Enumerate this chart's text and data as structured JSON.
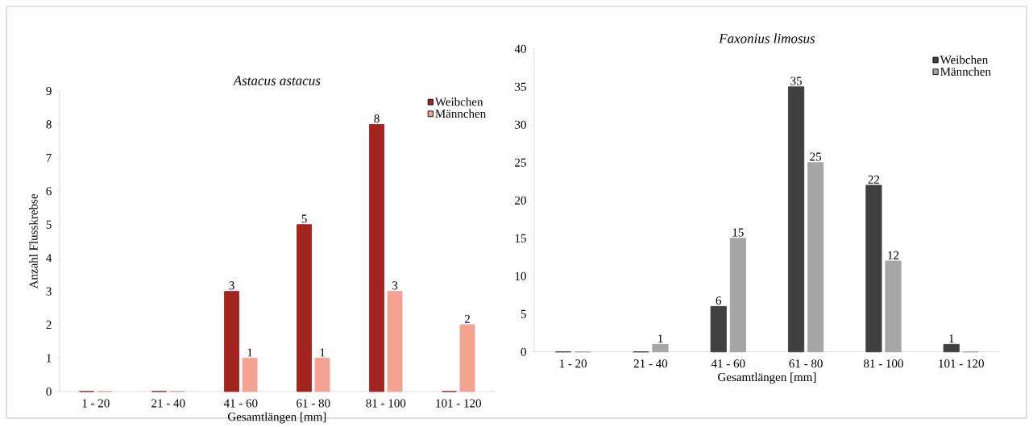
{
  "chart_data": [
    {
      "type": "bar",
      "title": "Astacus astacus",
      "xlabel": "Gesamtlängen [mm]",
      "ylabel": "Anzahl Flusskrebse",
      "categories": [
        "1 - 20",
        "21 - 40",
        "41 - 60",
        "61 - 80",
        "81 - 100",
        "101 - 120"
      ],
      "series": [
        {
          "name": "Weibchen",
          "color": "#a3231e",
          "values": [
            0,
            0,
            3,
            5,
            8,
            0
          ],
          "value_labels": [
            null,
            null,
            "3",
            "5",
            "8",
            null
          ]
        },
        {
          "name": "Männchen",
          "color": "#f4a393",
          "values": [
            0,
            0,
            1,
            1,
            3,
            2
          ],
          "value_labels": [
            null,
            null,
            "1",
            "1",
            "3",
            "2"
          ]
        }
      ],
      "ylim": [
        0,
        9
      ],
      "yticks": [
        0,
        1,
        2,
        3,
        4,
        5,
        6,
        7,
        8,
        9
      ],
      "grid": false,
      "legend": "top right"
    },
    {
      "type": "bar",
      "title": "Faxonius limosus",
      "xlabel": "Gesamtlängen [mm]",
      "categories": [
        "1 - 20",
        "21 - 40",
        "41 - 60",
        "61 - 80",
        "81 - 100",
        "101 - 120"
      ],
      "series": [
        {
          "name": "Weibchen",
          "color": "#404040",
          "values": [
            0,
            0,
            6,
            35,
            22,
            1
          ],
          "value_labels": [
            null,
            null,
            "6",
            "35",
            "22",
            "1"
          ]
        },
        {
          "name": "Männchen",
          "color": "#a6a6a6",
          "values": [
            0,
            1,
            15,
            25,
            12,
            0
          ],
          "value_labels": [
            null,
            "1",
            "15",
            "25",
            "12",
            null
          ]
        }
      ],
      "ylim": [
        0,
        40
      ],
      "yticks": [
        0,
        5,
        10,
        15,
        20,
        25,
        30,
        35,
        40
      ],
      "grid": false,
      "legend": "top right"
    }
  ]
}
